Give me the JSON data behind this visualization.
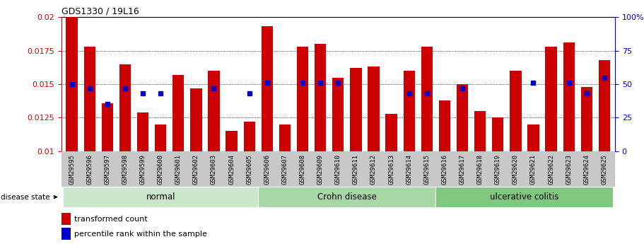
{
  "title": "GDS1330 / 19L16",
  "samples": [
    "GSM29595",
    "GSM29596",
    "GSM29597",
    "GSM29598",
    "GSM29599",
    "GSM29600",
    "GSM29601",
    "GSM29602",
    "GSM29603",
    "GSM29604",
    "GSM29605",
    "GSM29606",
    "GSM29607",
    "GSM29608",
    "GSM29609",
    "GSM29610",
    "GSM29611",
    "GSM29612",
    "GSM29613",
    "GSM29614",
    "GSM29615",
    "GSM29616",
    "GSM29617",
    "GSM29618",
    "GSM29619",
    "GSM29620",
    "GSM29621",
    "GSM29622",
    "GSM29623",
    "GSM29624",
    "GSM29625"
  ],
  "bar_values": [
    0.02,
    0.0178,
    0.0136,
    0.0165,
    0.0129,
    0.012,
    0.0157,
    0.0147,
    0.016,
    0.0115,
    0.0122,
    0.0193,
    0.012,
    0.0178,
    0.018,
    0.0155,
    0.0162,
    0.0163,
    0.0128,
    0.016,
    0.0178,
    0.0138,
    0.015,
    0.013,
    0.0125,
    0.016,
    0.012,
    0.0178,
    0.0181,
    0.0148,
    0.0168
  ],
  "percentile_values": [
    50,
    47,
    35,
    47,
    43,
    43,
    null,
    null,
    47,
    null,
    43,
    51,
    null,
    51,
    51,
    51,
    null,
    null,
    null,
    43,
    43,
    null,
    47,
    null,
    null,
    null,
    51,
    null,
    51,
    43,
    55
  ],
  "groups": [
    {
      "label": "normal",
      "start": 0,
      "end": 10,
      "color": "#cce8cc"
    },
    {
      "label": "Crohn disease",
      "start": 11,
      "end": 20,
      "color": "#a8d8a8"
    },
    {
      "label": "ulcerative colitis",
      "start": 21,
      "end": 30,
      "color": "#80c880"
    }
  ],
  "ylim_left": [
    0.01,
    0.02
  ],
  "ylim_right": [
    0,
    100
  ],
  "yticks_left": [
    0.01,
    0.0125,
    0.015,
    0.0175,
    0.02
  ],
  "yticks_right": [
    0,
    25,
    50,
    75,
    100
  ],
  "bar_color": "#cc0000",
  "dot_color": "#0000cc",
  "bg_color": "#ffffff",
  "legend_labels": [
    "transformed count",
    "percentile rank within the sample"
  ],
  "disease_state_label": "disease state"
}
